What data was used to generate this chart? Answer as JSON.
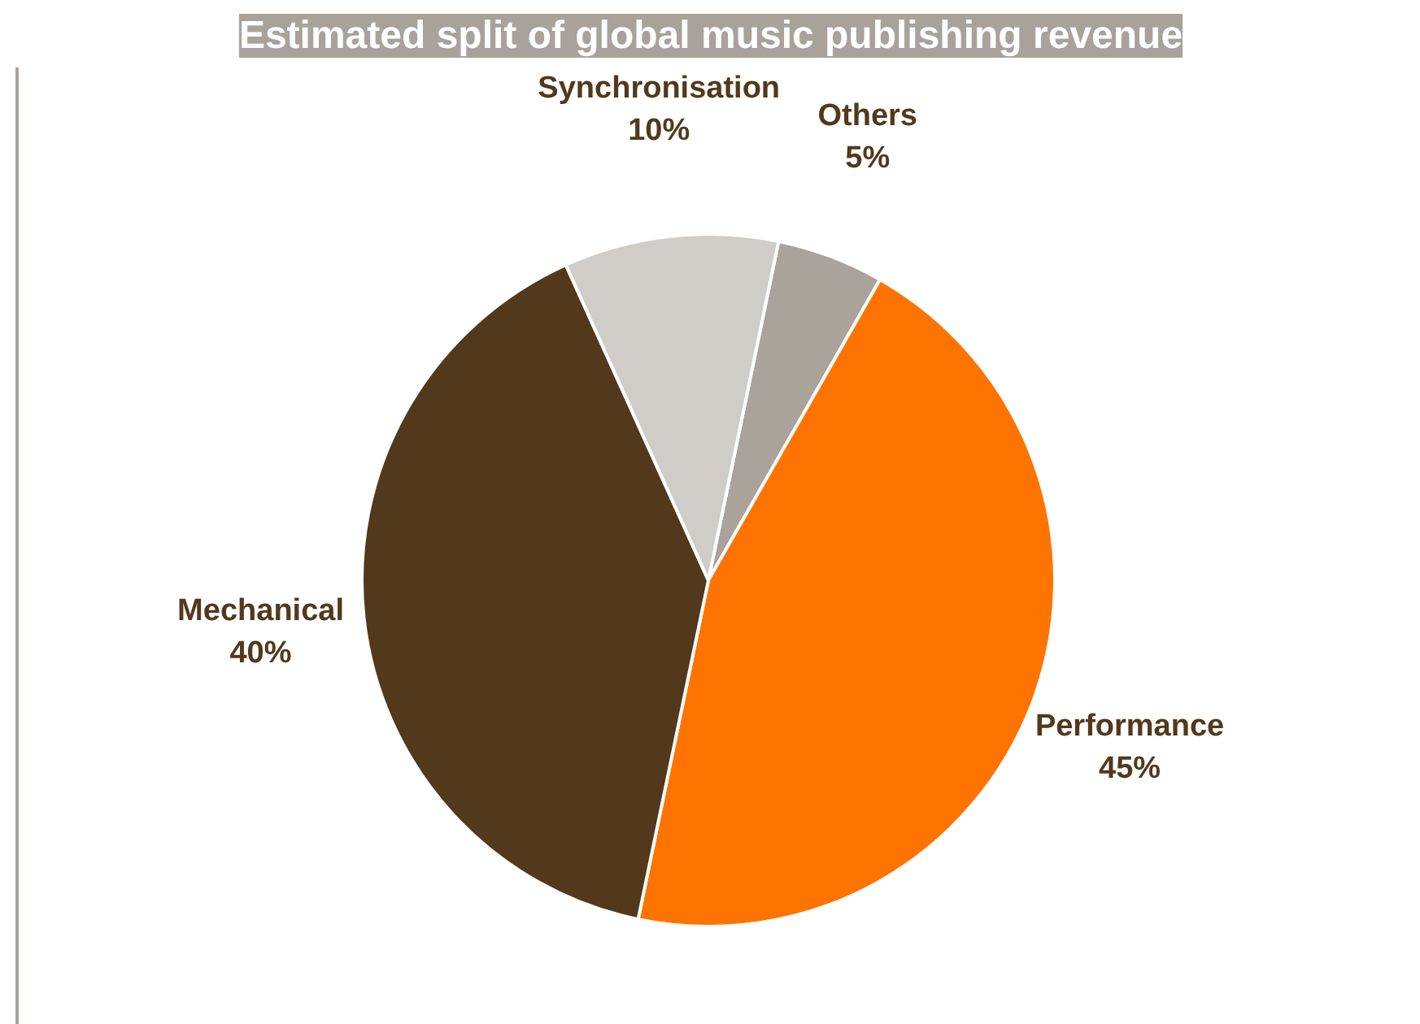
{
  "chart_data": {
    "type": "pie",
    "title": "Estimated split of global music publishing revenue",
    "categories": [
      "Others",
      "Performance",
      "Mechanical",
      "Synchronisation"
    ],
    "values": [
      5,
      45,
      40,
      10
    ],
    "colors": [
      "#aaa39b",
      "#ff7300",
      "#52391c",
      "#d0ccc7"
    ],
    "value_labels": [
      "5%",
      "45%",
      "40%",
      "10%"
    ]
  }
}
